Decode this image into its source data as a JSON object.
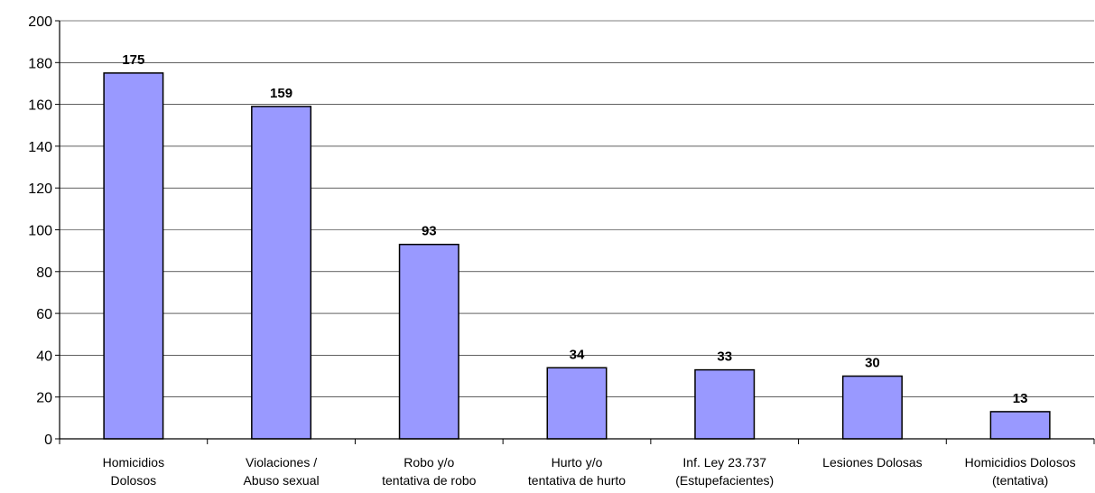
{
  "chart_data": {
    "type": "bar",
    "categories": [
      [
        "Homicidios",
        "Dolosos"
      ],
      [
        "Violaciones /",
        "Abuso sexual"
      ],
      [
        "Robo y/o",
        "tentativa de robo"
      ],
      [
        "Hurto y/o",
        "tentativa de hurto"
      ],
      [
        "Inf. Ley 23.737",
        "(Estupefacientes)"
      ],
      [
        "Lesiones Dolosas"
      ],
      [
        "Homicidios Dolosos",
        "(tentativa)"
      ]
    ],
    "values": [
      175,
      159,
      93,
      34,
      33,
      30,
      13
    ],
    "data_labels": [
      "175",
      "159",
      "93",
      "34",
      "33",
      "30",
      "13"
    ],
    "ylim": [
      0,
      200
    ],
    "yticks": [
      0,
      20,
      40,
      60,
      80,
      100,
      120,
      140,
      160,
      180,
      200
    ],
    "grid": true,
    "legend": false,
    "bar_color": "#9999ff",
    "bar_stroke": "#000000"
  }
}
